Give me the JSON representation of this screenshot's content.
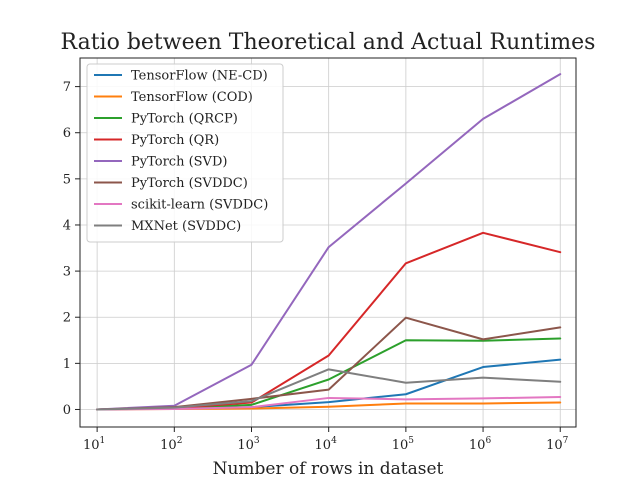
{
  "chart_data": {
    "type": "line",
    "title": "Ratio between Theoretical and Actual Runtimes",
    "xlabel": "Number of rows in dataset",
    "ylabel": "",
    "x": [
      10,
      100,
      1000,
      10000,
      100000,
      1000000,
      10000000
    ],
    "x_scale": "log",
    "xlim": [
      6,
      16000000
    ],
    "x_ticks": [
      {
        "base": "10",
        "exp": "1"
      },
      {
        "base": "10",
        "exp": "2"
      },
      {
        "base": "10",
        "exp": "3"
      },
      {
        "base": "10",
        "exp": "4"
      },
      {
        "base": "10",
        "exp": "5"
      },
      {
        "base": "10",
        "exp": "6"
      },
      {
        "base": "10",
        "exp": "7"
      }
    ],
    "ylim": [
      -0.38,
      7.62
    ],
    "y_ticks": [
      "0",
      "1",
      "2",
      "3",
      "4",
      "5",
      "6",
      "7"
    ],
    "grid": true,
    "legend_position": "top-left",
    "series": [
      {
        "name": "TensorFlow (NE-CD)",
        "color": "#1f77b4",
        "values": [
          0.0,
          0.02,
          0.05,
          0.16,
          0.33,
          0.92,
          1.08
        ]
      },
      {
        "name": "TensorFlow (COD)",
        "color": "#ff7f0e",
        "values": [
          0.0,
          0.01,
          0.02,
          0.06,
          0.13,
          0.13,
          0.15
        ]
      },
      {
        "name": "PyTorch (QRCP)",
        "color": "#2ca02c",
        "values": [
          0.0,
          0.03,
          0.1,
          0.65,
          1.5,
          1.49,
          1.54
        ]
      },
      {
        "name": "PyTorch (QR)",
        "color": "#d62728",
        "values": [
          0.0,
          0.03,
          0.15,
          1.17,
          3.17,
          3.83,
          3.41
        ]
      },
      {
        "name": "PyTorch (SVD)",
        "color": "#9467bd",
        "values": [
          0.0,
          0.08,
          0.97,
          3.52,
          4.9,
          6.3,
          7.27
        ]
      },
      {
        "name": "PyTorch (SVDDC)",
        "color": "#8c564b",
        "values": [
          0.0,
          0.05,
          0.23,
          0.43,
          1.99,
          1.52,
          1.78
        ]
      },
      {
        "name": "scikit-learn (SVDDC)",
        "color": "#e377c2",
        "values": [
          0.0,
          0.01,
          0.05,
          0.25,
          0.22,
          0.24,
          0.27
        ]
      },
      {
        "name": "MXNet (SVDDC)",
        "color": "#7f7f7f",
        "values": [
          0.0,
          0.04,
          0.18,
          0.87,
          0.58,
          0.69,
          0.6
        ]
      }
    ]
  }
}
